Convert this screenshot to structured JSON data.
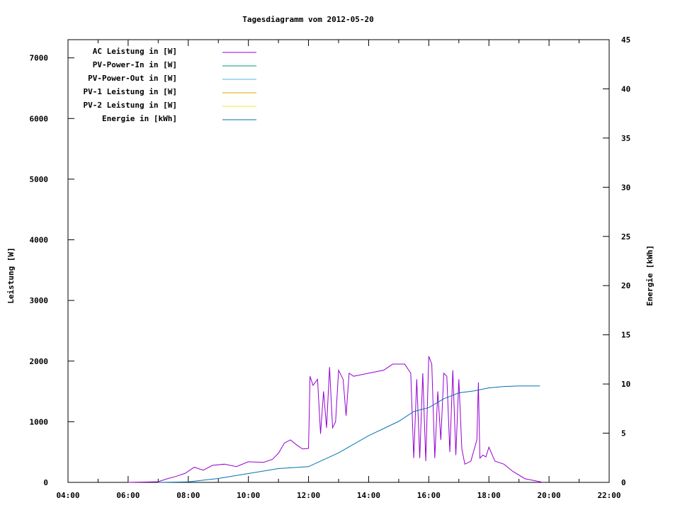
{
  "chart_data": {
    "type": "line",
    "title": "Tagesdiagramm vom 2012-05-20",
    "ylabel": "Leistung [W]",
    "y2label": "Energie [kWh]",
    "xlim": [
      "04:00",
      "22:00"
    ],
    "ylim": [
      0,
      7300
    ],
    "y2lim": [
      0,
      45
    ],
    "xticks": [
      "04:00",
      "06:00",
      "08:00",
      "10:00",
      "12:00",
      "14:00",
      "16:00",
      "18:00",
      "20:00",
      "22:00"
    ],
    "yticks": [
      0,
      1000,
      2000,
      3000,
      4000,
      5000,
      6000,
      7000
    ],
    "y2ticks": [
      0,
      5,
      10,
      15,
      20,
      25,
      30,
      35,
      40,
      45
    ],
    "grid": false,
    "legend_position": "top-left",
    "series": [
      {
        "name": "AC Leistung in [W]",
        "color": "#9400d3",
        "axis": "left",
        "x": [
          "06:00",
          "07:00",
          "07:18",
          "07:36",
          "07:54",
          "08:12",
          "08:30",
          "08:48",
          "09:12",
          "09:36",
          "10:00",
          "10:30",
          "10:48",
          "11:00",
          "11:12",
          "11:24",
          "11:36",
          "11:48",
          "12:00",
          "12:03",
          "12:09",
          "12:18",
          "12:24",
          "12:30",
          "12:36",
          "12:42",
          "12:48",
          "12:54",
          "13:00",
          "13:09",
          "13:15",
          "13:21",
          "13:30",
          "14:00",
          "14:30",
          "14:48",
          "15:12",
          "15:24",
          "15:30",
          "15:36",
          "15:42",
          "15:48",
          "15:54",
          "16:00",
          "16:06",
          "16:12",
          "16:18",
          "16:24",
          "16:30",
          "16:36",
          "16:42",
          "16:48",
          "16:54",
          "17:00",
          "17:06",
          "17:12",
          "17:24",
          "17:36",
          "17:39",
          "17:42",
          "17:48",
          "17:54",
          "18:00",
          "18:12",
          "18:30",
          "18:48",
          "19:12",
          "19:36",
          "19:48"
        ],
        "values": [
          0,
          10,
          60,
          100,
          150,
          250,
          200,
          280,
          300,
          260,
          340,
          330,
          380,
          480,
          650,
          700,
          620,
          550,
          560,
          1750,
          1600,
          1700,
          800,
          1500,
          900,
          1900,
          900,
          1000,
          1850,
          1700,
          1100,
          1800,
          1750,
          1800,
          1850,
          1950,
          1950,
          1800,
          400,
          1700,
          400,
          1800,
          350,
          2080,
          1950,
          400,
          1500,
          700,
          1800,
          1750,
          500,
          1850,
          450,
          1700,
          550,
          300,
          350,
          700,
          1650,
          400,
          450,
          420,
          580,
          350,
          300,
          180,
          60,
          20,
          0
        ]
      },
      {
        "name": "PV-Power-In in [W]",
        "color": "#009e73",
        "axis": "left",
        "x": [],
        "values": []
      },
      {
        "name": "PV-Power-Out in [W]",
        "color": "#56b4e9",
        "axis": "left",
        "x": [],
        "values": []
      },
      {
        "name": "PV-1 Leistung in [W]",
        "color": "#e69f00",
        "axis": "left",
        "x": [],
        "values": []
      },
      {
        "name": "PV-2 Leistung in [W]",
        "color": "#f0e442",
        "axis": "left",
        "x": [],
        "values": []
      },
      {
        "name": "Energie in [kWh]",
        "color": "#0072b2",
        "axis": "right",
        "x": [
          "07:00",
          "08:00",
          "09:00",
          "10:00",
          "11:00",
          "12:00",
          "13:00",
          "14:00",
          "15:00",
          "15:30",
          "16:00",
          "16:30",
          "17:00",
          "17:30",
          "18:00",
          "18:30",
          "19:00",
          "19:42"
        ],
        "values": [
          0,
          0.05,
          0.4,
          0.9,
          1.4,
          1.6,
          3.0,
          4.75,
          6.2,
          7.2,
          7.6,
          8.5,
          9.1,
          9.3,
          9.6,
          9.75,
          9.8,
          9.8
        ]
      }
    ]
  }
}
